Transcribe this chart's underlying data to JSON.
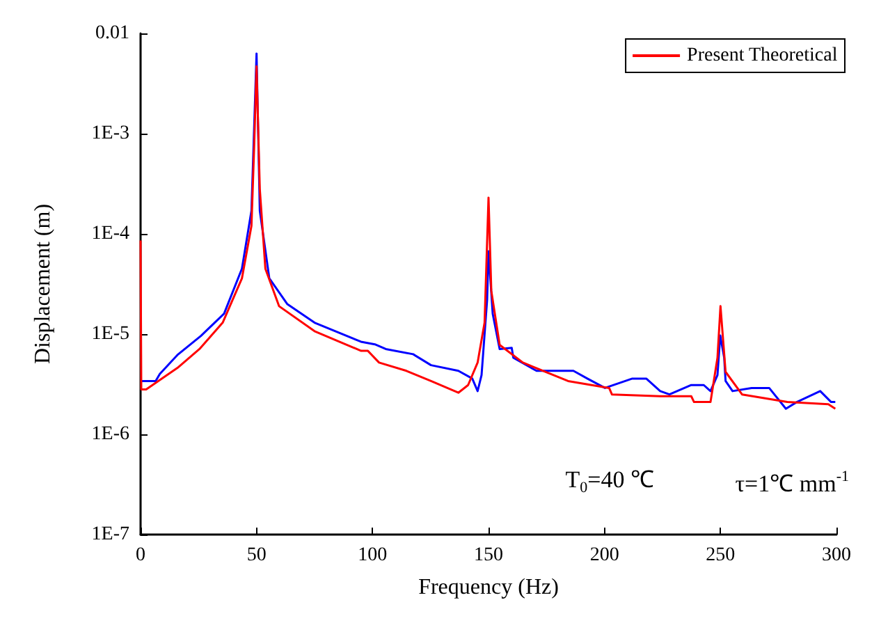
{
  "chart_data": {
    "type": "line",
    "xlabel": "Frequency (Hz)",
    "ylabel": "Displacement (m)",
    "log": "y",
    "grid": false,
    "legend": "top right",
    "marker": "none",
    "line_style": "solid",
    "xlim": [
      0,
      300
    ],
    "xticks": [
      0,
      50,
      100,
      150,
      200,
      250,
      300
    ],
    "ylim": [
      1e-07,
      0.01
    ],
    "yticks": [
      {
        "value": 1e-07,
        "label": "1E-7"
      },
      {
        "value": 1e-06,
        "label": "1E-6"
      },
      {
        "value": 1e-05,
        "label": "1E-5"
      },
      {
        "value": 0.0001,
        "label": "1E-4"
      },
      {
        "value": 0.001,
        "label": "1E-3"
      },
      0.01
    ],
    "annotations": [
      "T$_{0}$=40 ℃",
      "τ=1℃ mm$^{-1}$"
    ],
    "series": [
      {
        "color": "#0000ff",
        "x": [
          0.6,
          6.5,
          8.3,
          15.9,
          26,
          36,
          43.7,
          47.8,
          50,
          51.4,
          55.5,
          63.2,
          75,
          95,
          101,
          105.7,
          117.5,
          125.2,
          137,
          143,
          145.3,
          147,
          149.4,
          150,
          151.8,
          154.8,
          160,
          160.7,
          170.7,
          186.6,
          192.6,
          200.2,
          212,
          218,
          224,
          228,
          237.4,
          242.8,
          245.7,
          248.7,
          249.9,
          251.6,
          252.2,
          255.2,
          263.4,
          271,
          278.2,
          282.9,
          293,
          297.7,
          299.5
        ],
        "values": [
          3.4e-06,
          3.4e-06,
          4e-06,
          6.2e-06,
          9.6e-06,
          1.6e-05,
          4.5e-05,
          0.00017,
          0.0063,
          0.00017,
          3.6e-05,
          2e-05,
          1.3e-05,
          8.4e-06,
          7.9e-06,
          7.1e-06,
          6.3e-06,
          4.9e-06,
          4.3e-06,
          3.6e-06,
          2.7e-06,
          3.9e-06,
          2.2e-05,
          6.7e-05,
          1.6e-05,
          7.1e-06,
          7.3e-06,
          5.8e-06,
          4.3e-06,
          4.3e-06,
          3.6e-06,
          2.9e-06,
          3.6e-06,
          3.6e-06,
          2.7e-06,
          2.5e-06,
          3.1e-06,
          3.1e-06,
          2.7e-06,
          3.9e-06,
          9.7e-06,
          5.8e-06,
          3.4e-06,
          2.7e-06,
          2.9e-06,
          2.9e-06,
          1.8e-06,
          2.1e-06,
          2.7e-06,
          2.1e-06,
          2.1e-06
        ]
      },
      {
        "name": "Present Theoretical",
        "color": "#ff0000",
        "x": [
          0,
          0.3,
          2.4,
          15.9,
          25.4,
          35.4,
          43.7,
          47.8,
          49,
          50,
          51.4,
          53.8,
          59.7,
          75,
          95.1,
          98,
          102.8,
          114.6,
          125.2,
          137,
          141.2,
          145.3,
          148.3,
          150,
          151.2,
          154.8,
          164.8,
          184.3,
          202,
          203.2,
          223.9,
          237.4,
          238.6,
          245.7,
          248.7,
          250,
          252.2,
          259.3,
          278.8,
          296.5,
          299.5
        ],
        "values": [
          8.6e-05,
          2.8e-06,
          2.8e-06,
          4.6e-06,
          7.1e-06,
          1.3e-05,
          3.6e-05,
          0.00012,
          0.00078,
          0.0047,
          0.00028,
          4.5e-05,
          1.9e-05,
          1.07e-05,
          6.8e-06,
          6.8e-06,
          5.2e-06,
          4.3e-06,
          3.4e-06,
          2.6e-06,
          3.1e-06,
          5.2e-06,
          1.3e-05,
          0.00023,
          2.7e-05,
          7.8e-06,
          5.2e-06,
          3.4e-06,
          2.9e-06,
          2.5e-06,
          2.4e-06,
          2.4e-06,
          2.1e-06,
          2.1e-06,
          5.8e-06,
          1.9e-05,
          4.2e-06,
          2.5e-06,
          2.1e-06,
          2e-06,
          1.8e-06
        ]
      }
    ]
  }
}
